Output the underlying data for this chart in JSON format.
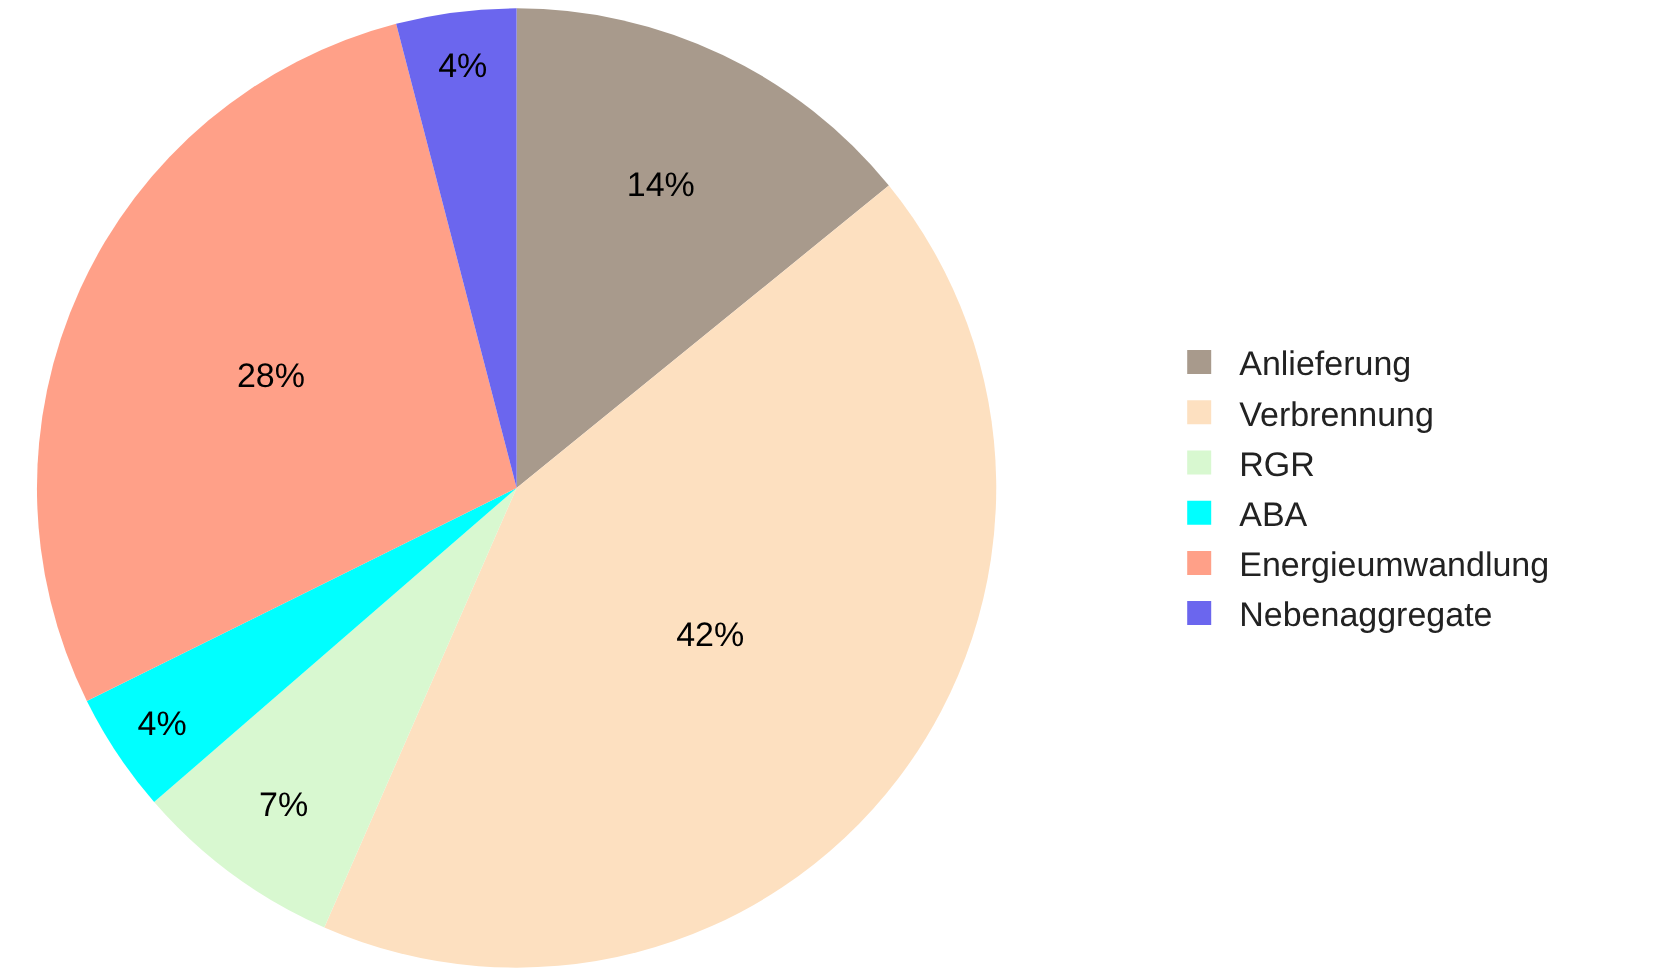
{
  "chart_data": {
    "type": "pie",
    "categories": [
      "Anlieferung",
      "Verbrennung",
      "RGR",
      "ABA",
      "Energieumwandlung",
      "Nebenaggregate"
    ],
    "values": [
      14,
      42,
      7,
      4,
      28,
      4
    ],
    "value_labels": [
      "14%",
      "42%",
      "7%",
      "4%",
      "28%",
      "4%"
    ],
    "colors": [
      "#a89a8c",
      "#fde0c0",
      "#d8f8d0",
      "#00ffff",
      "#ffa088",
      "#6b66ee"
    ],
    "legend": "right"
  }
}
